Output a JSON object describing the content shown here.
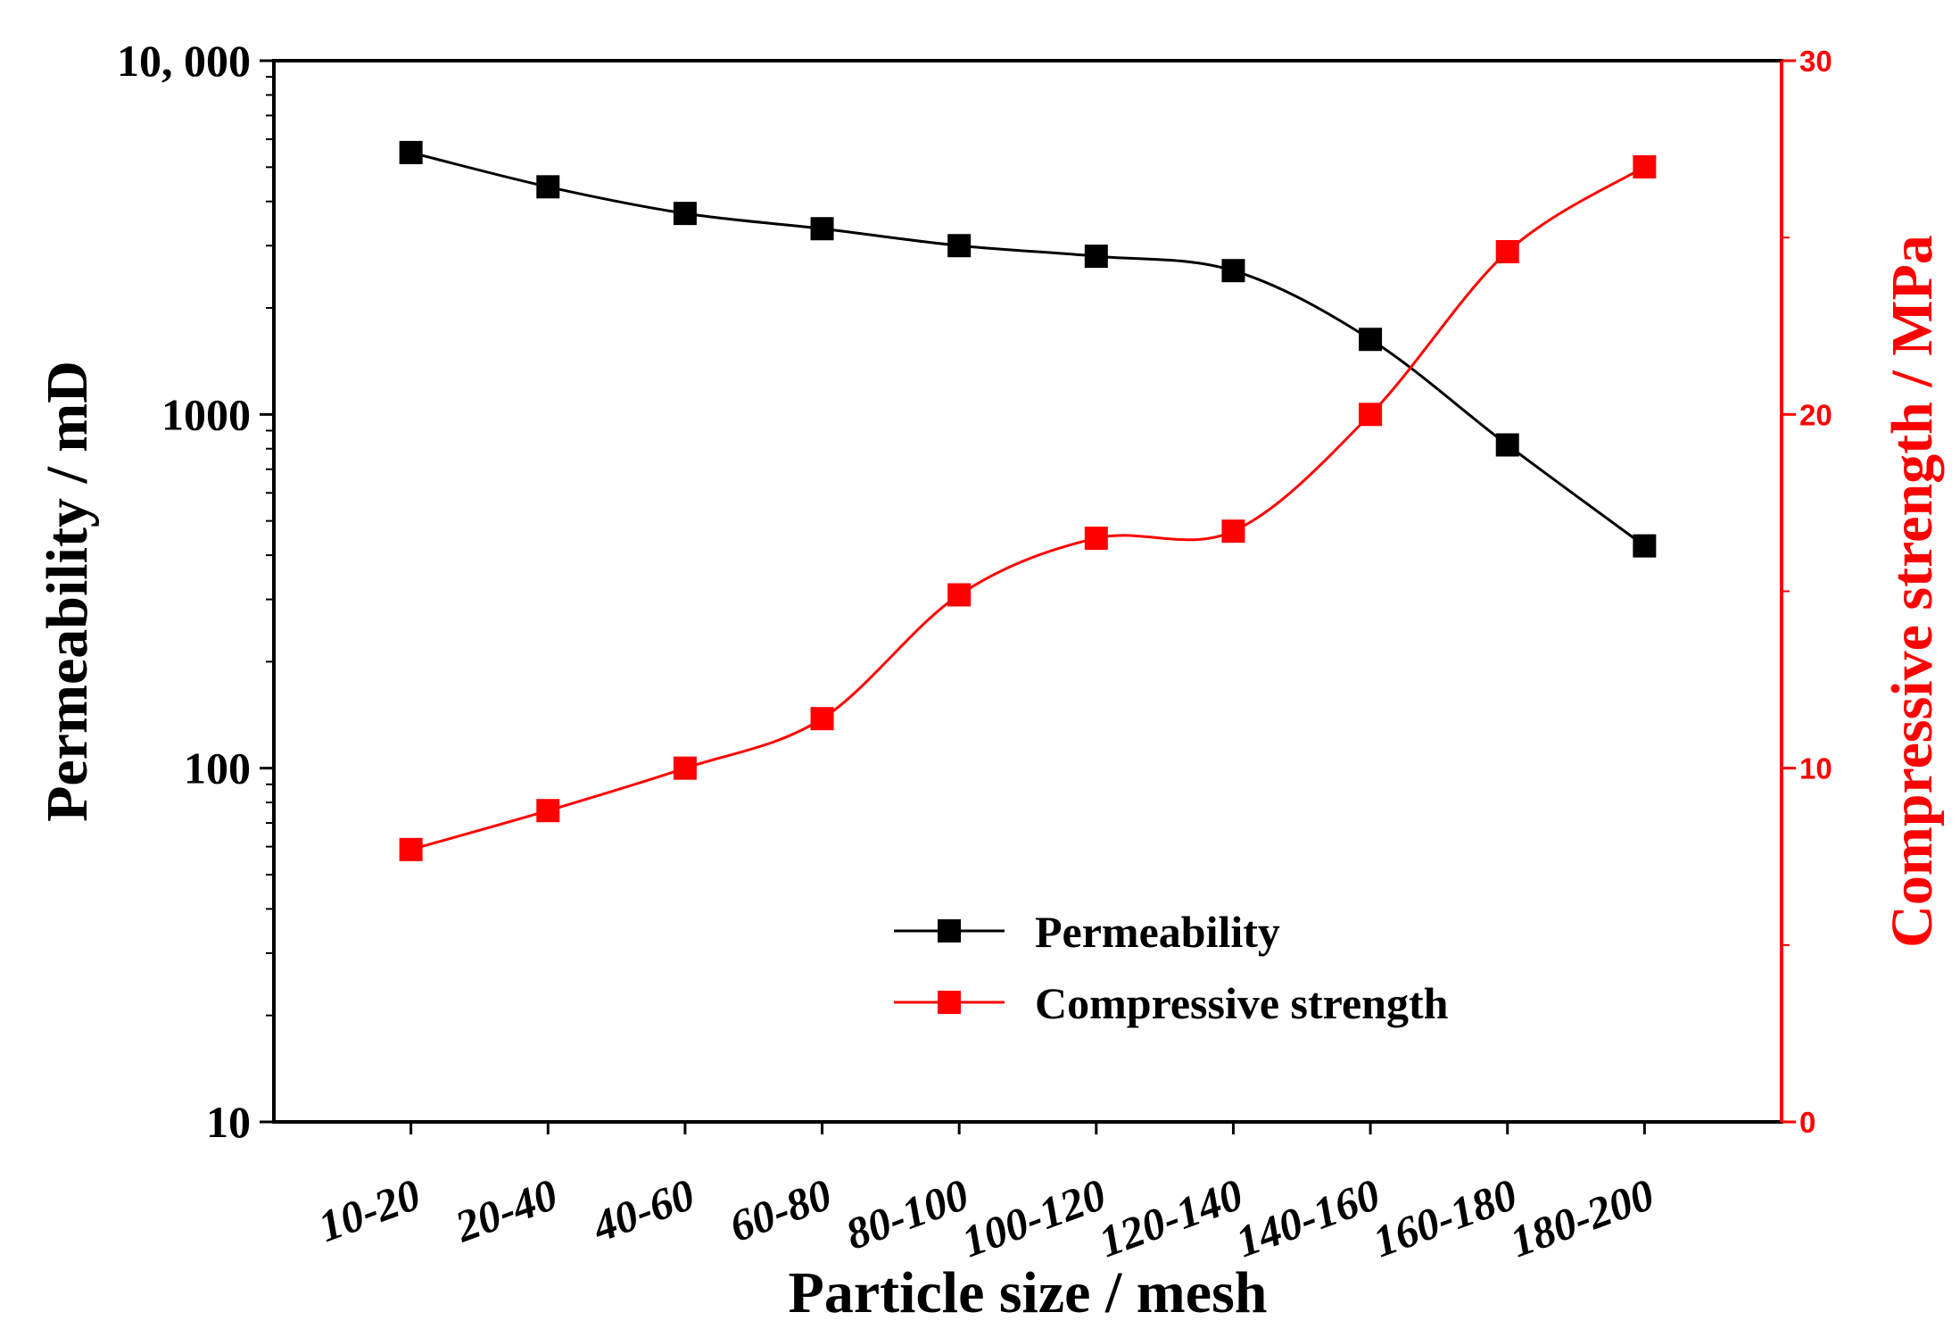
{
  "chart_data": {
    "type": "line",
    "categories": [
      "10-20",
      "20-40",
      "40-60",
      "60-80",
      "80-100",
      "100-120",
      "120-140",
      "140-160",
      "160-180",
      "180-200"
    ],
    "series": [
      {
        "name": "Permeability",
        "axis": "left",
        "color": "#000000",
        "marker": "square",
        "values": [
          5500,
          4400,
          3700,
          3350,
          3000,
          2800,
          2550,
          1630,
          820,
          425
        ]
      },
      {
        "name": "Compressive strength",
        "axis": "right",
        "color": "#ff0000",
        "marker": "square",
        "values": [
          7.7,
          8.8,
          10.0,
          11.4,
          14.9,
          16.5,
          16.7,
          20.0,
          24.6,
          27.0
        ]
      }
    ],
    "xlabel": "Particle size / mesh",
    "ylabel_left": "Permeability / mD",
    "ylabel_right": "Compressive strength / MPa",
    "y_left": {
      "scale": "log",
      "range": [
        10,
        10000
      ],
      "ticks": [
        {
          "value": 10,
          "label": "10"
        },
        {
          "value": 100,
          "label": "100"
        },
        {
          "value": 1000,
          "label": "1000"
        },
        {
          "value": 10000,
          "label": "10,   000"
        }
      ]
    },
    "y_right": {
      "scale": "linear",
      "range": [
        0,
        30
      ],
      "major_ticks": [
        0,
        10,
        20,
        30
      ],
      "minor_ticks": [
        5,
        15,
        25
      ]
    },
    "legend_position": "center-right, lower half",
    "grid": false
  }
}
